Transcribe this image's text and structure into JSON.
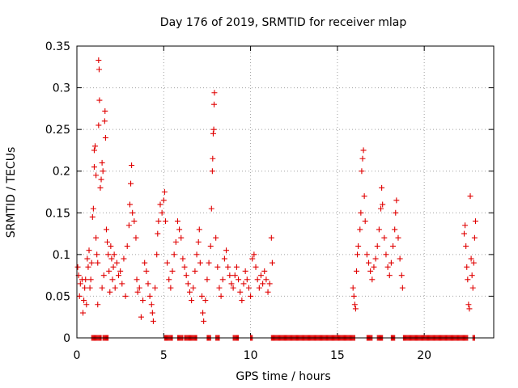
{
  "chart_data": {
    "type": "scatter",
    "title": "Day 176 of 2019, SRMTID for receiver mlap",
    "xlabel": "GPS time / hours",
    "ylabel": "SRMTID / TECUs",
    "xlim": [
      0,
      24
    ],
    "ylim": [
      0,
      0.35
    ],
    "grid": true,
    "marker": "+",
    "color": "#e00000",
    "xticks": [
      0,
      5,
      10,
      15,
      20
    ],
    "xtick_labels": [
      "0",
      "5",
      "10",
      "15",
      "20"
    ],
    "yticks": [
      0,
      0.05,
      0.1,
      0.15,
      0.2,
      0.25,
      0.3,
      0.35
    ],
    "ytick_labels": [
      "0",
      "0.05",
      "0.1",
      "0.15",
      "0.2",
      "0.25",
      "0.3",
      "0.35"
    ],
    "series": [
      {
        "name": "SRMTID",
        "points": [
          [
            0.05,
            0.085
          ],
          [
            0.1,
            0.075
          ],
          [
            0.15,
            0.05
          ],
          [
            0.2,
            0.065
          ],
          [
            0.3,
            0.07
          ],
          [
            0.35,
            0.03
          ],
          [
            0.4,
            0.045
          ],
          [
            0.45,
            0.06
          ],
          [
            0.5,
            0.07
          ],
          [
            0.55,
            0.04
          ],
          [
            0.6,
            0.095
          ],
          [
            0.65,
            0.085
          ],
          [
            0.7,
            0.105
          ],
          [
            0.75,
            0.06
          ],
          [
            0.8,
            0.07
          ],
          [
            0.85,
            0.09
          ],
          [
            0.9,
            0.145
          ],
          [
            0.95,
            0.155
          ],
          [
            1.0,
            0.205
          ],
          [
            1.0,
            0.225
          ],
          [
            1.05,
            0.23
          ],
          [
            1.1,
            0.195
          ],
          [
            1.1,
            0.12
          ],
          [
            1.15,
            0.1
          ],
          [
            1.2,
            0.09
          ],
          [
            1.2,
            0.04
          ],
          [
            1.25,
            0.255
          ],
          [
            1.25,
            0.333
          ],
          [
            1.28,
            0.322
          ],
          [
            1.3,
            0.285
          ],
          [
            1.35,
            0.18
          ],
          [
            1.4,
            0.19
          ],
          [
            1.45,
            0.21
          ],
          [
            1.45,
            0.06
          ],
          [
            1.5,
            0.2
          ],
          [
            1.55,
            0.075
          ],
          [
            1.6,
            0.26
          ],
          [
            1.62,
            0.272
          ],
          [
            1.65,
            0.24
          ],
          [
            1.7,
            0.13
          ],
          [
            1.75,
            0.115
          ],
          [
            1.8,
            0.1
          ],
          [
            1.85,
            0.08
          ],
          [
            1.9,
            0.055
          ],
          [
            1.95,
            0.11
          ],
          [
            2.0,
            0.095
          ],
          [
            2.05,
            0.07
          ],
          [
            2.1,
            0.085
          ],
          [
            2.15,
            0.1
          ],
          [
            2.2,
            0.06
          ],
          [
            2.3,
            0.09
          ],
          [
            2.4,
            0.075
          ],
          [
            2.5,
            0.08
          ],
          [
            2.6,
            0.065
          ],
          [
            2.7,
            0.095
          ],
          [
            2.8,
            0.05
          ],
          [
            2.9,
            0.11
          ],
          [
            3.0,
            0.135
          ],
          [
            3.05,
            0.16
          ],
          [
            3.1,
            0.185
          ],
          [
            3.15,
            0.207
          ],
          [
            3.2,
            0.15
          ],
          [
            3.3,
            0.14
          ],
          [
            3.4,
            0.12
          ],
          [
            3.45,
            0.07
          ],
          [
            3.5,
            0.055
          ],
          [
            3.6,
            0.06
          ],
          [
            3.7,
            0.025
          ],
          [
            3.8,
            0.045
          ],
          [
            3.9,
            0.09
          ],
          [
            4.0,
            0.08
          ],
          [
            4.1,
            0.065
          ],
          [
            4.2,
            0.05
          ],
          [
            4.3,
            0.04
          ],
          [
            4.35,
            0.03
          ],
          [
            4.4,
            0.02
          ],
          [
            4.5,
            0.06
          ],
          [
            4.6,
            0.1
          ],
          [
            4.65,
            0.125
          ],
          [
            4.7,
            0.14
          ],
          [
            4.8,
            0.16
          ],
          [
            4.9,
            0.15
          ],
          [
            5.0,
            0.165
          ],
          [
            5.05,
            0.175
          ],
          [
            5.1,
            0.14
          ],
          [
            5.2,
            0.09
          ],
          [
            5.3,
            0.07
          ],
          [
            5.4,
            0.06
          ],
          [
            5.5,
            0.08
          ],
          [
            5.6,
            0.1
          ],
          [
            5.7,
            0.115
          ],
          [
            5.8,
            0.14
          ],
          [
            5.9,
            0.13
          ],
          [
            6.0,
            0.12
          ],
          [
            6.1,
            0.095
          ],
          [
            6.2,
            0.085
          ],
          [
            6.3,
            0.075
          ],
          [
            6.4,
            0.065
          ],
          [
            6.5,
            0.055
          ],
          [
            6.6,
            0.045
          ],
          [
            6.7,
            0.06
          ],
          [
            6.8,
            0.08
          ],
          [
            6.9,
            0.1
          ],
          [
            7.0,
            0.115
          ],
          [
            7.05,
            0.13
          ],
          [
            7.1,
            0.09
          ],
          [
            7.2,
            0.05
          ],
          [
            7.25,
            0.03
          ],
          [
            7.3,
            0.02
          ],
          [
            7.4,
            0.045
          ],
          [
            7.5,
            0.07
          ],
          [
            7.6,
            0.09
          ],
          [
            7.7,
            0.11
          ],
          [
            7.75,
            0.155
          ],
          [
            7.8,
            0.2
          ],
          [
            7.82,
            0.215
          ],
          [
            7.85,
            0.245
          ],
          [
            7.88,
            0.25
          ],
          [
            7.9,
            0.28
          ],
          [
            7.92,
            0.294
          ],
          [
            8.0,
            0.12
          ],
          [
            8.1,
            0.085
          ],
          [
            8.2,
            0.06
          ],
          [
            8.3,
            0.05
          ],
          [
            8.4,
            0.07
          ],
          [
            8.5,
            0.095
          ],
          [
            8.6,
            0.105
          ],
          [
            8.7,
            0.085
          ],
          [
            8.8,
            0.075
          ],
          [
            8.9,
            0.065
          ],
          [
            9.0,
            0.06
          ],
          [
            9.1,
            0.075
          ],
          [
            9.2,
            0.085
          ],
          [
            9.3,
            0.07
          ],
          [
            9.4,
            0.055
          ],
          [
            9.5,
            0.045
          ],
          [
            9.6,
            0.065
          ],
          [
            9.7,
            0.08
          ],
          [
            9.8,
            0.07
          ],
          [
            9.9,
            0.06
          ],
          [
            10.0,
            0.05
          ],
          [
            10.1,
            0.095
          ],
          [
            10.2,
            0.1
          ],
          [
            10.3,
            0.085
          ],
          [
            10.4,
            0.07
          ],
          [
            10.5,
            0.06
          ],
          [
            10.6,
            0.075
          ],
          [
            10.7,
            0.065
          ],
          [
            10.8,
            0.08
          ],
          [
            10.9,
            0.07
          ],
          [
            11.0,
            0.055
          ],
          [
            11.1,
            0.065
          ],
          [
            11.2,
            0.12
          ],
          [
            11.25,
            0.09
          ],
          [
            15.9,
            0.06
          ],
          [
            15.95,
            0.05
          ],
          [
            16.0,
            0.04
          ],
          [
            16.05,
            0.035
          ],
          [
            16.1,
            0.08
          ],
          [
            16.15,
            0.1
          ],
          [
            16.2,
            0.11
          ],
          [
            16.3,
            0.13
          ],
          [
            16.35,
            0.15
          ],
          [
            16.4,
            0.2
          ],
          [
            16.45,
            0.215
          ],
          [
            16.5,
            0.225
          ],
          [
            16.55,
            0.17
          ],
          [
            16.6,
            0.14
          ],
          [
            16.7,
            0.1
          ],
          [
            16.8,
            0.09
          ],
          [
            16.9,
            0.08
          ],
          [
            17.0,
            0.07
          ],
          [
            17.1,
            0.085
          ],
          [
            17.2,
            0.095
          ],
          [
            17.3,
            0.11
          ],
          [
            17.4,
            0.13
          ],
          [
            17.5,
            0.155
          ],
          [
            17.55,
            0.18
          ],
          [
            17.6,
            0.16
          ],
          [
            17.7,
            0.12
          ],
          [
            17.8,
            0.1
          ],
          [
            17.9,
            0.085
          ],
          [
            18.0,
            0.075
          ],
          [
            18.1,
            0.09
          ],
          [
            18.2,
            0.11
          ],
          [
            18.3,
            0.13
          ],
          [
            18.35,
            0.15
          ],
          [
            18.4,
            0.165
          ],
          [
            18.5,
            0.12
          ],
          [
            18.6,
            0.095
          ],
          [
            18.7,
            0.075
          ],
          [
            18.75,
            0.06
          ],
          [
            22.3,
            0.125
          ],
          [
            22.35,
            0.135
          ],
          [
            22.4,
            0.11
          ],
          [
            22.45,
            0.085
          ],
          [
            22.5,
            0.07
          ],
          [
            22.55,
            0.04
          ],
          [
            22.6,
            0.035
          ],
          [
            22.65,
            0.17
          ],
          [
            22.7,
            0.095
          ],
          [
            22.75,
            0.075
          ],
          [
            22.8,
            0.06
          ],
          [
            22.85,
            0.09
          ],
          [
            22.9,
            0.12
          ],
          [
            22.95,
            0.14
          ]
        ],
        "zero_intervals": [
          [
            0.85,
            1.4
          ],
          [
            1.5,
            1.8
          ],
          [
            5.05,
            5.5
          ],
          [
            5.8,
            6.1
          ],
          [
            6.2,
            6.9
          ],
          [
            7.5,
            7.7
          ],
          [
            8.0,
            8.2
          ],
          [
            9.0,
            9.3
          ],
          [
            10.0,
            10.1
          ],
          [
            11.2,
            16.0
          ],
          [
            16.7,
            17.0
          ],
          [
            17.3,
            17.6
          ],
          [
            18.1,
            18.3
          ],
          [
            18.8,
            22.5
          ],
          [
            22.8,
            22.9
          ]
        ]
      }
    ]
  }
}
